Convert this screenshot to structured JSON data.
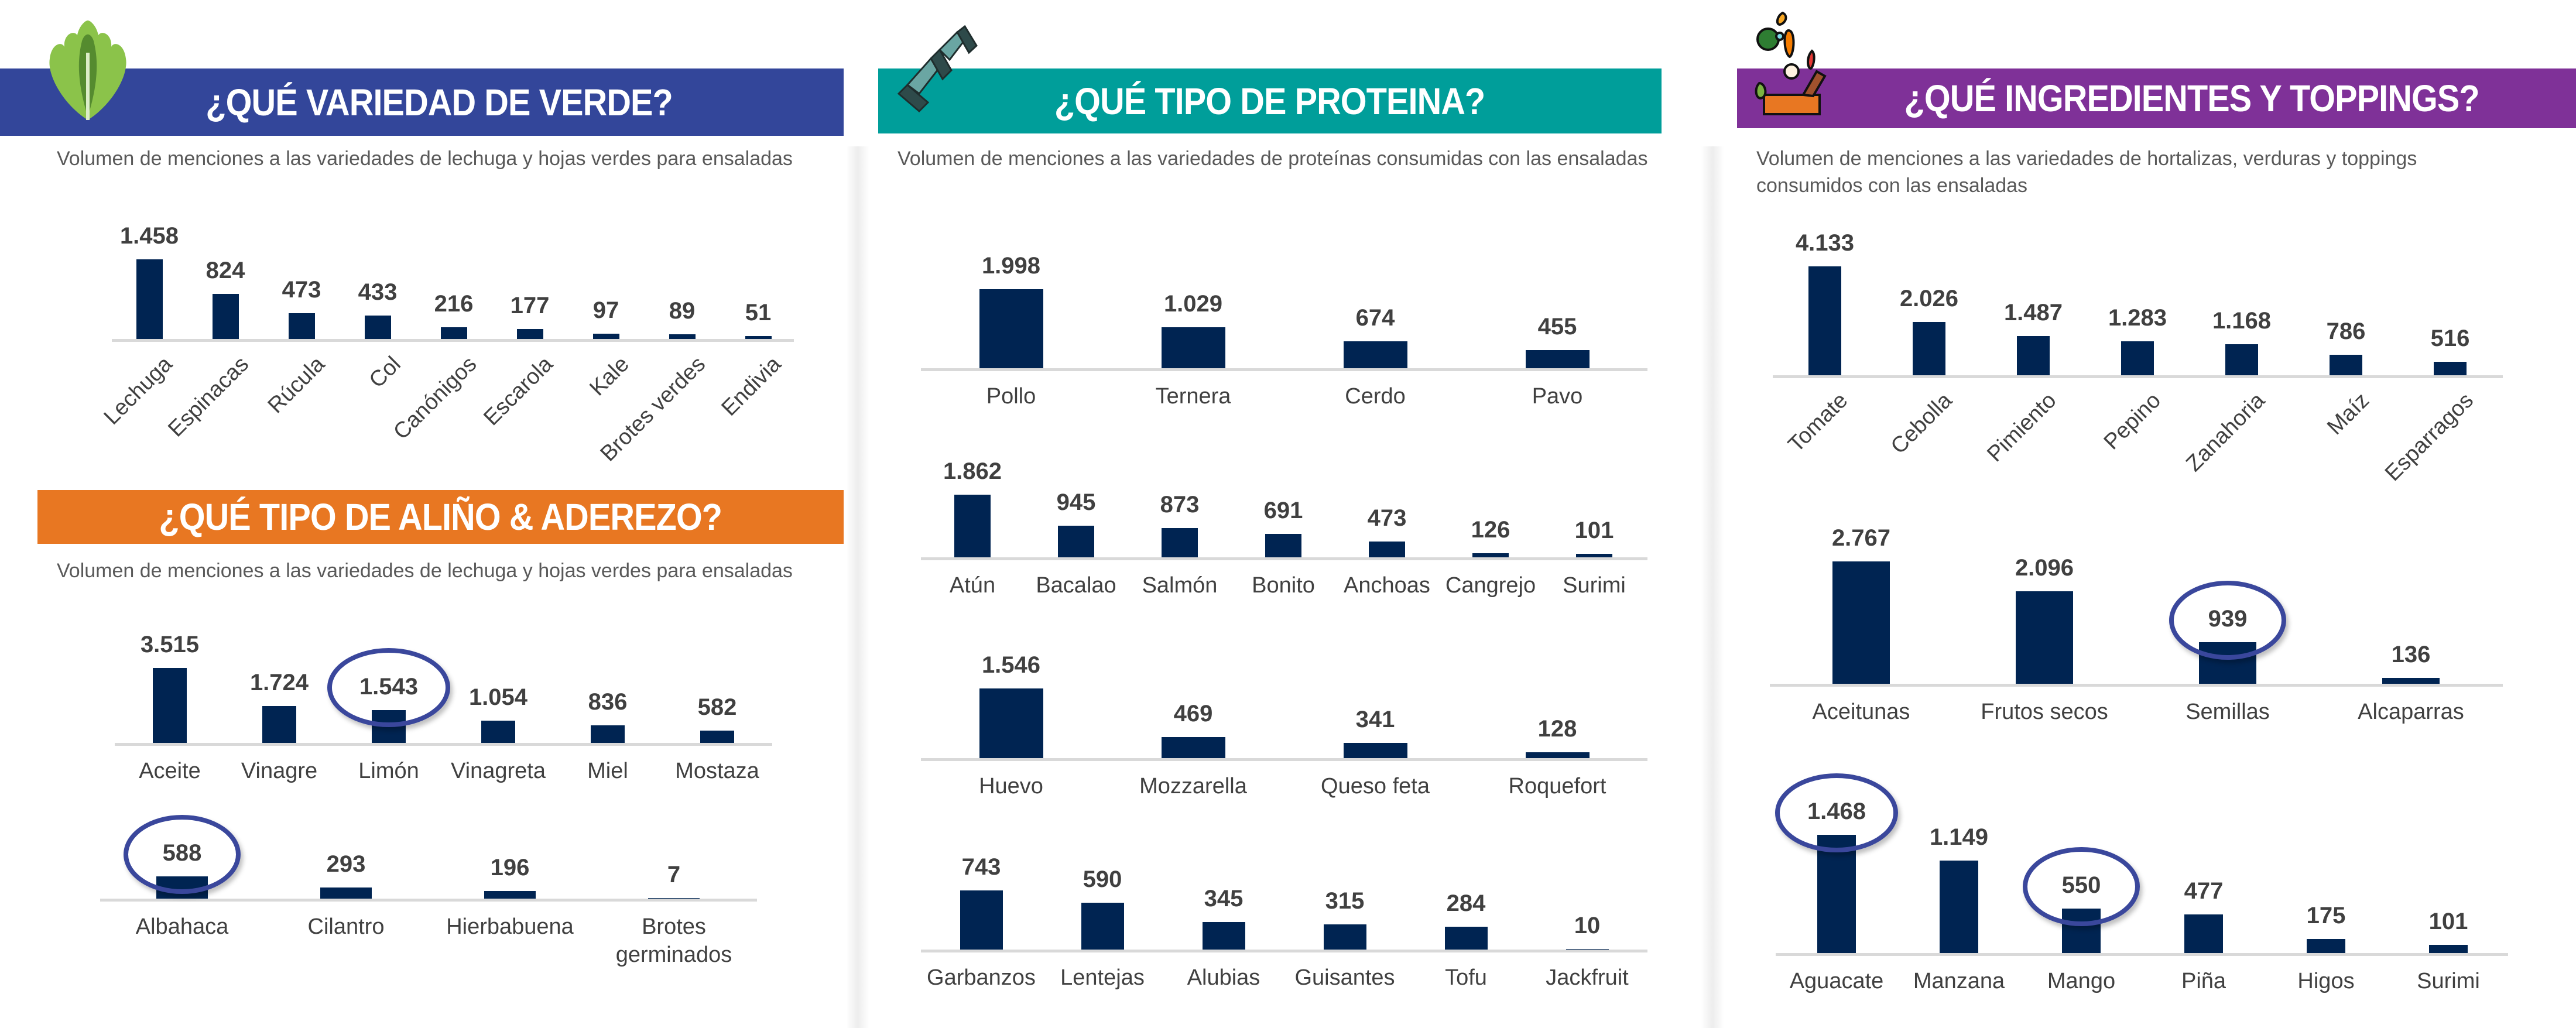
{
  "panels": {
    "greens": {
      "title": "¿QUÉ VARIEDAD DE VERDE?",
      "subtitle": "Volumen de menciones a las variedades de lechuga y hojas verdes para ensaladas",
      "icon": "lettuce-icon",
      "color": "#33469a"
    },
    "dressing": {
      "title": "¿QUÉ TIPO DE ALIÑO & ADEREZO?",
      "subtitle": "Volumen de menciones a las variedades de lechuga y hojas verdes para ensaladas",
      "color": "#e87722"
    },
    "protein": {
      "title": "¿QUÉ TIPO DE PROTEINA?",
      "subtitle": "Volumen de menciones a las variedades de proteínas consumidas con las ensaladas",
      "icon": "ribbon-icon",
      "color": "#009e9a"
    },
    "toppings": {
      "title": "¿QUÉ INGREDIENTES Y TOPPINGS?",
      "subtitle": "Volumen de menciones a las variedades de hortalizas, verduras y toppings consumidos con las ensaladas",
      "icon": "vegetables-box-icon",
      "color": "#7f3198"
    }
  },
  "colors": {
    "bar": "#002452",
    "highlight_ring": "#3a479c"
  },
  "chart_data": [
    {
      "id": "greens",
      "type": "bar",
      "rotated_labels": true,
      "categories": [
        "Lechuga",
        "Espinacas",
        "Rúcula",
        "Col",
        "Canónigos",
        "Escarola",
        "Kale",
        "Brotes verdes",
        "Endivia"
      ],
      "values": [
        1458,
        824,
        473,
        433,
        216,
        177,
        97,
        89,
        51
      ],
      "value_labels": [
        "1.458",
        "824",
        "473",
        "433",
        "216",
        "177",
        "97",
        "89",
        "51"
      ],
      "highlighted": []
    },
    {
      "id": "dressing-1",
      "type": "bar",
      "categories": [
        "Aceite",
        "Vinagre",
        "Limón",
        "Vinagreta",
        "Miel",
        "Mostaza"
      ],
      "values": [
        3515,
        1724,
        1543,
        1054,
        836,
        582
      ],
      "value_labels": [
        "3.515",
        "1.724",
        "1.543",
        "1.054",
        "836",
        "582"
      ],
      "highlighted": [
        "Limón"
      ]
    },
    {
      "id": "dressing-2",
      "type": "bar",
      "categories": [
        "Albahaca",
        "Cilantro",
        "Hierbabuena",
        "Brotes germinados"
      ],
      "values": [
        588,
        293,
        196,
        7
      ],
      "value_labels": [
        "588",
        "293",
        "196",
        "7"
      ],
      "highlighted": [
        "Albahaca"
      ]
    },
    {
      "id": "protein-1",
      "type": "bar",
      "categories": [
        "Pollo",
        "Ternera",
        "Cerdo",
        "Pavo"
      ],
      "values": [
        1998,
        1029,
        674,
        455
      ],
      "value_labels": [
        "1.998",
        "1.029",
        "674",
        "455"
      ],
      "highlighted": []
    },
    {
      "id": "protein-2",
      "type": "bar",
      "categories": [
        "Atún",
        "Bacalao",
        "Salmón",
        "Bonito",
        "Anchoas",
        "Cangrejo",
        "Surimi"
      ],
      "values": [
        1862,
        945,
        873,
        691,
        473,
        126,
        101
      ],
      "value_labels": [
        "1.862",
        "945",
        "873",
        "691",
        "473",
        "126",
        "101"
      ],
      "highlighted": []
    },
    {
      "id": "protein-3",
      "type": "bar",
      "categories": [
        "Huevo",
        "Mozzarella",
        "Queso feta",
        "Roquefort"
      ],
      "values": [
        1546,
        469,
        341,
        128
      ],
      "value_labels": [
        "1.546",
        "469",
        "341",
        "128"
      ],
      "highlighted": []
    },
    {
      "id": "protein-4",
      "type": "bar",
      "categories": [
        "Garbanzos",
        "Lentejas",
        "Alubias",
        "Guisantes",
        "Tofu",
        "Jackfruit"
      ],
      "values": [
        743,
        590,
        345,
        315,
        284,
        10
      ],
      "value_labels": [
        "743",
        "590",
        "345",
        "315",
        "284",
        "10"
      ],
      "highlighted": []
    },
    {
      "id": "toppings-1",
      "type": "bar",
      "rotated_labels": true,
      "categories": [
        "Tomate",
        "Cebolla",
        "Pimiento",
        "Pepino",
        "Zanahoria",
        "Maíz",
        "Esparragos"
      ],
      "values": [
        4133,
        2026,
        1487,
        1283,
        1168,
        786,
        516
      ],
      "value_labels": [
        "4.133",
        "2.026",
        "1.487",
        "1.283",
        "1.168",
        "786",
        "516"
      ],
      "highlighted": []
    },
    {
      "id": "toppings-2",
      "type": "bar",
      "categories": [
        "Aceitunas",
        "Frutos secos",
        "Semillas",
        "Alcaparras"
      ],
      "values": [
        2767,
        2096,
        939,
        136
      ],
      "value_labels": [
        "2.767",
        "2.096",
        "939",
        "136"
      ],
      "highlighted": [
        "Semillas"
      ]
    },
    {
      "id": "toppings-3",
      "type": "bar",
      "categories": [
        "Aguacate",
        "Manzana",
        "Mango",
        "Piña",
        "Higos",
        "Surimi"
      ],
      "values": [
        1468,
        1149,
        550,
        477,
        175,
        101
      ],
      "value_labels": [
        "1.468",
        "1.149",
        "550",
        "477",
        "175",
        "101"
      ],
      "highlighted": [
        "Aguacate",
        "Mango"
      ]
    }
  ]
}
